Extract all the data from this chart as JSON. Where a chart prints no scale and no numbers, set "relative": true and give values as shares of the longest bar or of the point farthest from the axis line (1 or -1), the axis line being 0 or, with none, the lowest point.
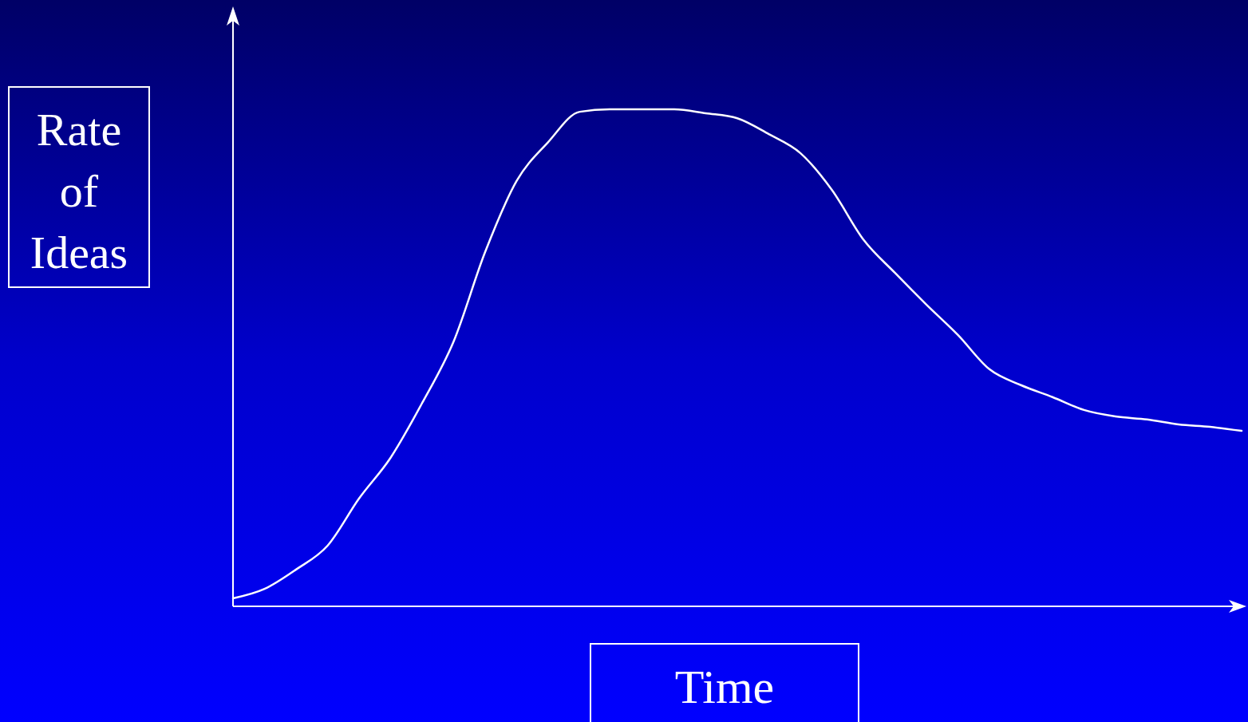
{
  "chart_data": {
    "type": "line",
    "relative": true,
    "xlabel": "Time",
    "ylabel": "Rate of Ideas",
    "line_style": "solid",
    "categories": [
      null,
      null,
      null,
      null,
      null,
      null,
      null,
      null,
      null,
      null,
      null,
      null,
      null,
      null,
      null,
      null,
      null,
      null,
      null,
      null,
      null,
      null,
      null,
      null,
      null,
      null,
      null,
      null,
      null,
      null,
      null,
      null,
      null
    ],
    "series": [
      {
        "color": "#ffffff",
        "values": [
          0.016,
          0.035,
          0.074,
          0.122,
          0.217,
          0.299,
          0.409,
          0.533,
          0.713,
          0.856,
          0.934,
          0.995,
          1,
          1,
          1,
          0.992,
          0.982,
          0.95,
          0.912,
          0.838,
          0.738,
          0.671,
          0.607,
          0.546,
          0.477,
          0.445,
          0.421,
          0.395,
          0.382,
          0.376,
          0.366,
          0.361,
          0.353
        ]
      }
    ]
  }
}
